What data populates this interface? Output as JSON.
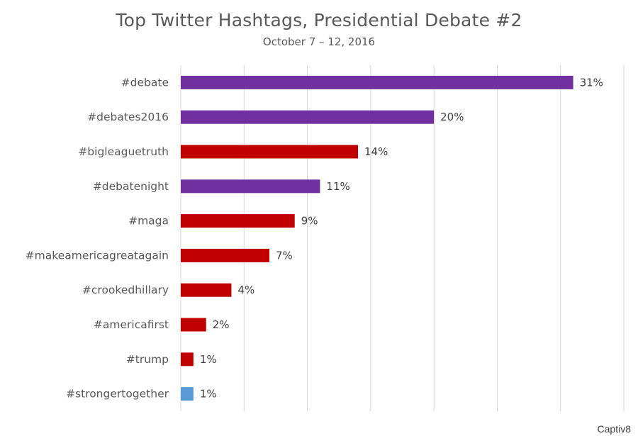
{
  "chart_data": {
    "type": "bar",
    "orientation": "horizontal",
    "title": "Top Twitter Hashtags, Presidential Debate #2",
    "subtitle": "October 7 – 12, 2016",
    "categories": [
      "#debate",
      "#debates2016",
      "#bigleaguetruth",
      "#debatenight",
      "#maga",
      "#makeamericagreatagain",
      "#crookedhillary",
      "#americafirst",
      "#trump",
      "#strongertogether"
    ],
    "values": [
      31,
      20,
      14,
      11,
      9,
      7,
      4,
      2,
      1,
      1
    ],
    "value_labels": [
      "31%",
      "20%",
      "14%",
      "11%",
      "9%",
      "7%",
      "4%",
      "2%",
      "1%",
      "1%"
    ],
    "value_colors": [
      "#7030A0",
      "#7030A0",
      "#C00000",
      "#7030A0",
      "#C00000",
      "#C00000",
      "#C00000",
      "#C00000",
      "#C00000",
      "#5B9BD5"
    ],
    "xlim": [
      0,
      35
    ],
    "x_gridlines": [
      0,
      5,
      10,
      15,
      20,
      25,
      30,
      35
    ],
    "grid": true,
    "xlabel": "",
    "ylabel": ""
  },
  "brand": {
    "logo_text": "Captiv8"
  },
  "colors": {
    "text": "#595959",
    "gridline": "#D9D9D9"
  }
}
